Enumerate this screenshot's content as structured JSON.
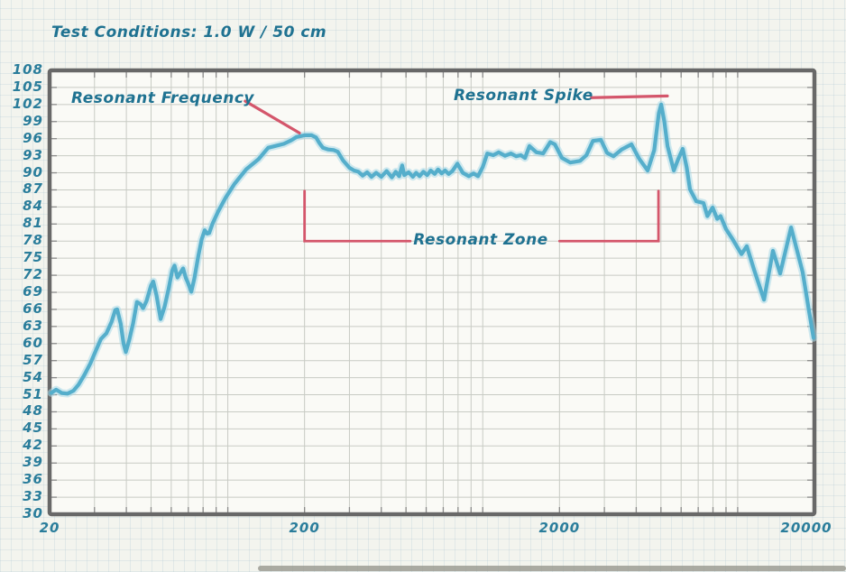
{
  "page": {
    "title": "Test Conditions: 1.0 W / 50 cm"
  },
  "colors": {
    "ink_teal": "#1f7291",
    "annotation_red": "#d4566b",
    "curve_blue": "#55aecb",
    "curve_halo": "#a9d9e8",
    "grid_line": "#c8cbc4",
    "frame_gray": "#686868",
    "tick_gray": "#8a8a8a",
    "paper": "#f3f4ee",
    "plot_background": "#fafaf6"
  },
  "chart_data": {
    "type": "line",
    "title": "Test Conditions: 1.0 W / 50 cm",
    "x_scale": "log",
    "xlim": [
      20,
      20000
    ],
    "ylim": [
      30,
      108
    ],
    "x_ticks": [
      20,
      200,
      2000,
      20000
    ],
    "y_ticks": [
      108,
      105,
      102,
      99,
      96,
      93,
      90,
      87,
      84,
      81,
      78,
      75,
      72,
      69,
      66,
      63,
      60,
      57,
      54,
      51,
      48,
      45,
      42,
      39,
      36,
      33,
      30
    ],
    "y_tick_step": 3,
    "grid": true,
    "legend": "none",
    "series": [
      {
        "name": "frequency-response-spl",
        "color": "#55aecb",
        "points": [
          [
            20.3,
            51.3
          ],
          [
            21.2,
            51.9
          ],
          [
            22.3,
            51.3
          ],
          [
            23.5,
            51.2
          ],
          [
            24.8,
            51.7
          ],
          [
            26,
            52.8
          ],
          [
            27.4,
            54.5
          ],
          [
            28.9,
            56.5
          ],
          [
            30.4,
            58.8
          ],
          [
            31.8,
            60.8
          ],
          [
            33.4,
            61.8
          ],
          [
            35,
            63.8
          ],
          [
            36.2,
            65.9
          ],
          [
            36.8,
            66
          ],
          [
            38,
            63.5
          ],
          [
            39,
            60
          ],
          [
            39.8,
            58.5
          ],
          [
            41,
            60.5
          ],
          [
            42.5,
            63.5
          ],
          [
            44,
            67.3
          ],
          [
            45.5,
            66.9
          ],
          [
            46.5,
            66.2
          ],
          [
            48,
            67.5
          ],
          [
            50,
            70.2
          ],
          [
            51,
            70.9
          ],
          [
            52.5,
            68.5
          ],
          [
            54.5,
            64.3
          ],
          [
            56.5,
            66.5
          ],
          [
            58.5,
            69.5
          ],
          [
            60.5,
            72.8
          ],
          [
            61.8,
            73.7
          ],
          [
            63.5,
            71.6
          ],
          [
            65.5,
            72.6
          ],
          [
            66.8,
            73.2
          ],
          [
            68.5,
            71.5
          ],
          [
            69.6,
            70.8
          ],
          [
            71.9,
            69.1
          ],
          [
            74,
            71.5
          ],
          [
            76.7,
            75.5
          ],
          [
            79,
            78.3
          ],
          [
            81.2,
            79.9
          ],
          [
            83,
            79.3
          ],
          [
            84.5,
            79.4
          ],
          [
            87,
            81
          ],
          [
            91.7,
            83.2
          ],
          [
            98,
            85.6
          ],
          [
            106,
            88
          ],
          [
            118,
            90.6
          ],
          [
            132,
            92.4
          ],
          [
            144,
            94.4
          ],
          [
            156,
            94.8
          ],
          [
            166,
            95.1
          ],
          [
            177,
            95.7
          ],
          [
            186,
            96.3
          ],
          [
            200,
            96.6
          ],
          [
            213,
            96.6
          ],
          [
            222,
            96.2
          ],
          [
            228,
            95.3
          ],
          [
            236,
            94.4
          ],
          [
            248,
            94.1
          ],
          [
            260,
            94.0
          ],
          [
            270,
            93.7
          ],
          [
            283,
            92.2
          ],
          [
            300,
            90.9
          ],
          [
            313,
            90.4
          ],
          [
            325,
            90.2
          ],
          [
            338,
            89.5
          ],
          [
            352,
            90.1
          ],
          [
            366,
            89.3
          ],
          [
            382,
            90.0
          ],
          [
            400,
            89.3
          ],
          [
            420,
            90.3
          ],
          [
            440,
            89.2
          ],
          [
            456,
            90.2
          ],
          [
            470,
            89.4
          ],
          [
            483,
            91.3
          ],
          [
            492,
            89.6
          ],
          [
            512,
            90.1
          ],
          [
            532,
            89.3
          ],
          [
            548,
            90.0
          ],
          [
            565,
            89.4
          ],
          [
            585,
            90.2
          ],
          [
            605,
            89.6
          ],
          [
            625,
            90.4
          ],
          [
            648,
            89.8
          ],
          [
            668,
            90.6
          ],
          [
            690,
            89.9
          ],
          [
            712,
            90.4
          ],
          [
            735,
            89.8
          ],
          [
            760,
            90.3
          ],
          [
            795,
            91.6
          ],
          [
            835,
            90.0
          ],
          [
            882,
            89.4
          ],
          [
            920,
            89.9
          ],
          [
            958,
            89.4
          ],
          [
            1000,
            91.0
          ],
          [
            1042,
            93.4
          ],
          [
            1100,
            93.1
          ],
          [
            1155,
            93.6
          ],
          [
            1222,
            93.0
          ],
          [
            1290,
            93.4
          ],
          [
            1352,
            92.9
          ],
          [
            1410,
            93.1
          ],
          [
            1465,
            92.6
          ],
          [
            1525,
            94.7
          ],
          [
            1625,
            93.6
          ],
          [
            1725,
            93.4
          ],
          [
            1840,
            95.4
          ],
          [
            1918,
            95.0
          ],
          [
            2045,
            92.6
          ],
          [
            2205,
            91.8
          ],
          [
            2410,
            92.1
          ],
          [
            2550,
            93.1
          ],
          [
            2705,
            95.6
          ],
          [
            2905,
            95.8
          ],
          [
            3075,
            93.5
          ],
          [
            3255,
            92.9
          ],
          [
            3505,
            94.1
          ],
          [
            3830,
            95.0
          ],
          [
            4105,
            92.5
          ],
          [
            4435,
            90.4
          ],
          [
            4705,
            94.0
          ],
          [
            4905,
            100.5
          ],
          [
            5010,
            102.0
          ],
          [
            5155,
            99.0
          ],
          [
            5305,
            94.7
          ],
          [
            5615,
            90.4
          ],
          [
            5855,
            92.5
          ],
          [
            6090,
            94.2
          ],
          [
            6305,
            91.0
          ],
          [
            6500,
            87.1
          ],
          [
            6880,
            85.0
          ],
          [
            7345,
            84.7
          ],
          [
            7605,
            82.4
          ],
          [
            7970,
            83.9
          ],
          [
            8310,
            81.9
          ],
          [
            8565,
            82.4
          ],
          [
            9005,
            80.1
          ],
          [
            9530,
            78.4
          ],
          [
            10345,
            75.7
          ],
          [
            10860,
            77.1
          ],
          [
            11605,
            72.9
          ],
          [
            12680,
            67.7
          ],
          [
            13755,
            76.3
          ],
          [
            14680,
            72.3
          ],
          [
            16190,
            80.4
          ],
          [
            17995,
            72.5
          ],
          [
            19050,
            65.7
          ],
          [
            19845,
            61.0
          ]
        ]
      }
    ],
    "annotations": [
      {
        "id": "resonant-frequency",
        "label": "Resonant Frequency",
        "type": "leader",
        "points_at": {
          "hz": 200,
          "db": 96.6
        },
        "leader_from": {
          "hz": 117,
          "db": 102.6
        },
        "leader_to": {
          "hz": 191,
          "db": 97.0
        }
      },
      {
        "id": "resonant-spike",
        "label": "Resonant Spike",
        "type": "leader",
        "points_at": {
          "hz": 5000,
          "db": 102
        },
        "leader_from": {
          "hz": 2670,
          "db": 103.2
        },
        "leader_to": {
          "hz": 5300,
          "db": 103.5
        }
      },
      {
        "id": "resonant-zone",
        "label": "Resonant Zone",
        "type": "bracket",
        "range_hz": [
          200,
          4890
        ],
        "bracket_top_db": 86.8,
        "bracket_base_db": 78.0,
        "text_gap_hz": [
          520,
          2000
        ]
      }
    ]
  }
}
